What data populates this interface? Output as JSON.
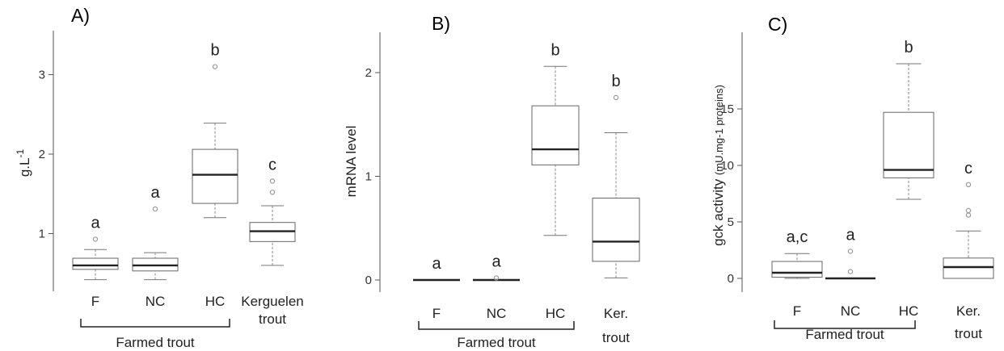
{
  "chart_data": [
    {
      "type": "box",
      "panel_label": "A)",
      "ylabel_main": "g.L",
      "ylabel_sup": "-1",
      "ylabel_small": "",
      "yticks": [
        "1",
        "2",
        "3"
      ],
      "ylim": [
        0.4,
        3.2
      ],
      "categories": [
        {
          "label": [
            "F"
          ],
          "sig": "a",
          "stats": {
            "min": 0.42,
            "q1": 0.55,
            "median": 0.6,
            "q3": 0.69,
            "max": 0.8
          },
          "outliers": [
            0.93
          ]
        },
        {
          "label": [
            "NC"
          ],
          "sig": "a",
          "stats": {
            "min": 0.42,
            "q1": 0.53,
            "median": 0.6,
            "q3": 0.69,
            "max": 0.76
          },
          "outliers": [
            1.31
          ]
        },
        {
          "label": [
            "HC"
          ],
          "sig": "b",
          "stats": {
            "min": 1.2,
            "q1": 1.38,
            "median": 1.74,
            "q3": 2.06,
            "max": 2.39
          },
          "outliers": [
            3.1
          ]
        },
        {
          "label": [
            "Kerguelen",
            "trout"
          ],
          "sig": "c",
          "stats": {
            "min": 0.6,
            "q1": 0.9,
            "median": 1.03,
            "q3": 1.14,
            "max": 1.35
          },
          "outliers": [
            1.52,
            1.66
          ]
        }
      ],
      "group_label": "Farmed trout"
    },
    {
      "type": "box",
      "panel_label": "B)",
      "ylabel_main": "mRNA level",
      "ylabel_sup": "",
      "ylabel_small": "",
      "yticks": [
        "0",
        "1",
        "2"
      ],
      "ylim": [
        -0.1,
        2.2
      ],
      "categories": [
        {
          "label": [
            "F"
          ],
          "sig": "a",
          "stats": {
            "min": 0.0,
            "q1": 0.0,
            "median": 0.0,
            "q3": 0.0,
            "max": 0.0
          },
          "outliers": []
        },
        {
          "label": [
            "NC"
          ],
          "sig": "a",
          "stats": {
            "min": 0.0,
            "q1": 0.0,
            "median": 0.0,
            "q3": 0.0,
            "max": 0.0
          },
          "outliers": [
            0.02
          ]
        },
        {
          "label": [
            "HC"
          ],
          "sig": "b",
          "stats": {
            "min": 0.43,
            "q1": 1.11,
            "median": 1.26,
            "q3": 1.68,
            "max": 2.06
          },
          "outliers": []
        },
        {
          "label": [
            "Ker.",
            "trout"
          ],
          "sig": "b",
          "stats": {
            "min": 0.02,
            "q1": 0.18,
            "median": 0.37,
            "q3": 0.79,
            "max": 1.42
          },
          "outliers": [
            1.76
          ]
        }
      ],
      "group_label": "Farmed trout"
    },
    {
      "type": "box",
      "panel_label": "C)",
      "ylabel_main": "gck activity ",
      "ylabel_sup": "",
      "ylabel_small": "(mU.mg-1 proteins)",
      "yticks": [
        "0",
        "5",
        "10",
        "15"
      ],
      "ylim": [
        -0.8,
        19.8
      ],
      "categories": [
        {
          "label": [
            "F"
          ],
          "sig": "a,c",
          "stats": {
            "min": 0.0,
            "q1": 0.1,
            "median": 0.5,
            "q3": 1.5,
            "max": 2.2
          },
          "outliers": []
        },
        {
          "label": [
            "NC"
          ],
          "sig": "a",
          "stats": {
            "min": 0.0,
            "q1": 0.0,
            "median": 0.0,
            "q3": 0.0,
            "max": 0.0
          },
          "outliers": [
            0.6,
            2.4
          ]
        },
        {
          "label": [
            "HC"
          ],
          "sig": "b",
          "stats": {
            "min": 7.0,
            "q1": 8.9,
            "median": 9.6,
            "q3": 14.7,
            "max": 19.0
          },
          "outliers": []
        },
        {
          "label": [
            "Ker.",
            "trout"
          ],
          "sig": "c",
          "stats": {
            "min": 0.0,
            "q1": 0.0,
            "median": 1.0,
            "q3": 1.8,
            "max": 4.2
          },
          "outliers": [
            5.6,
            6.0,
            8.3
          ]
        }
      ],
      "group_label": "Farmed trout"
    }
  ]
}
